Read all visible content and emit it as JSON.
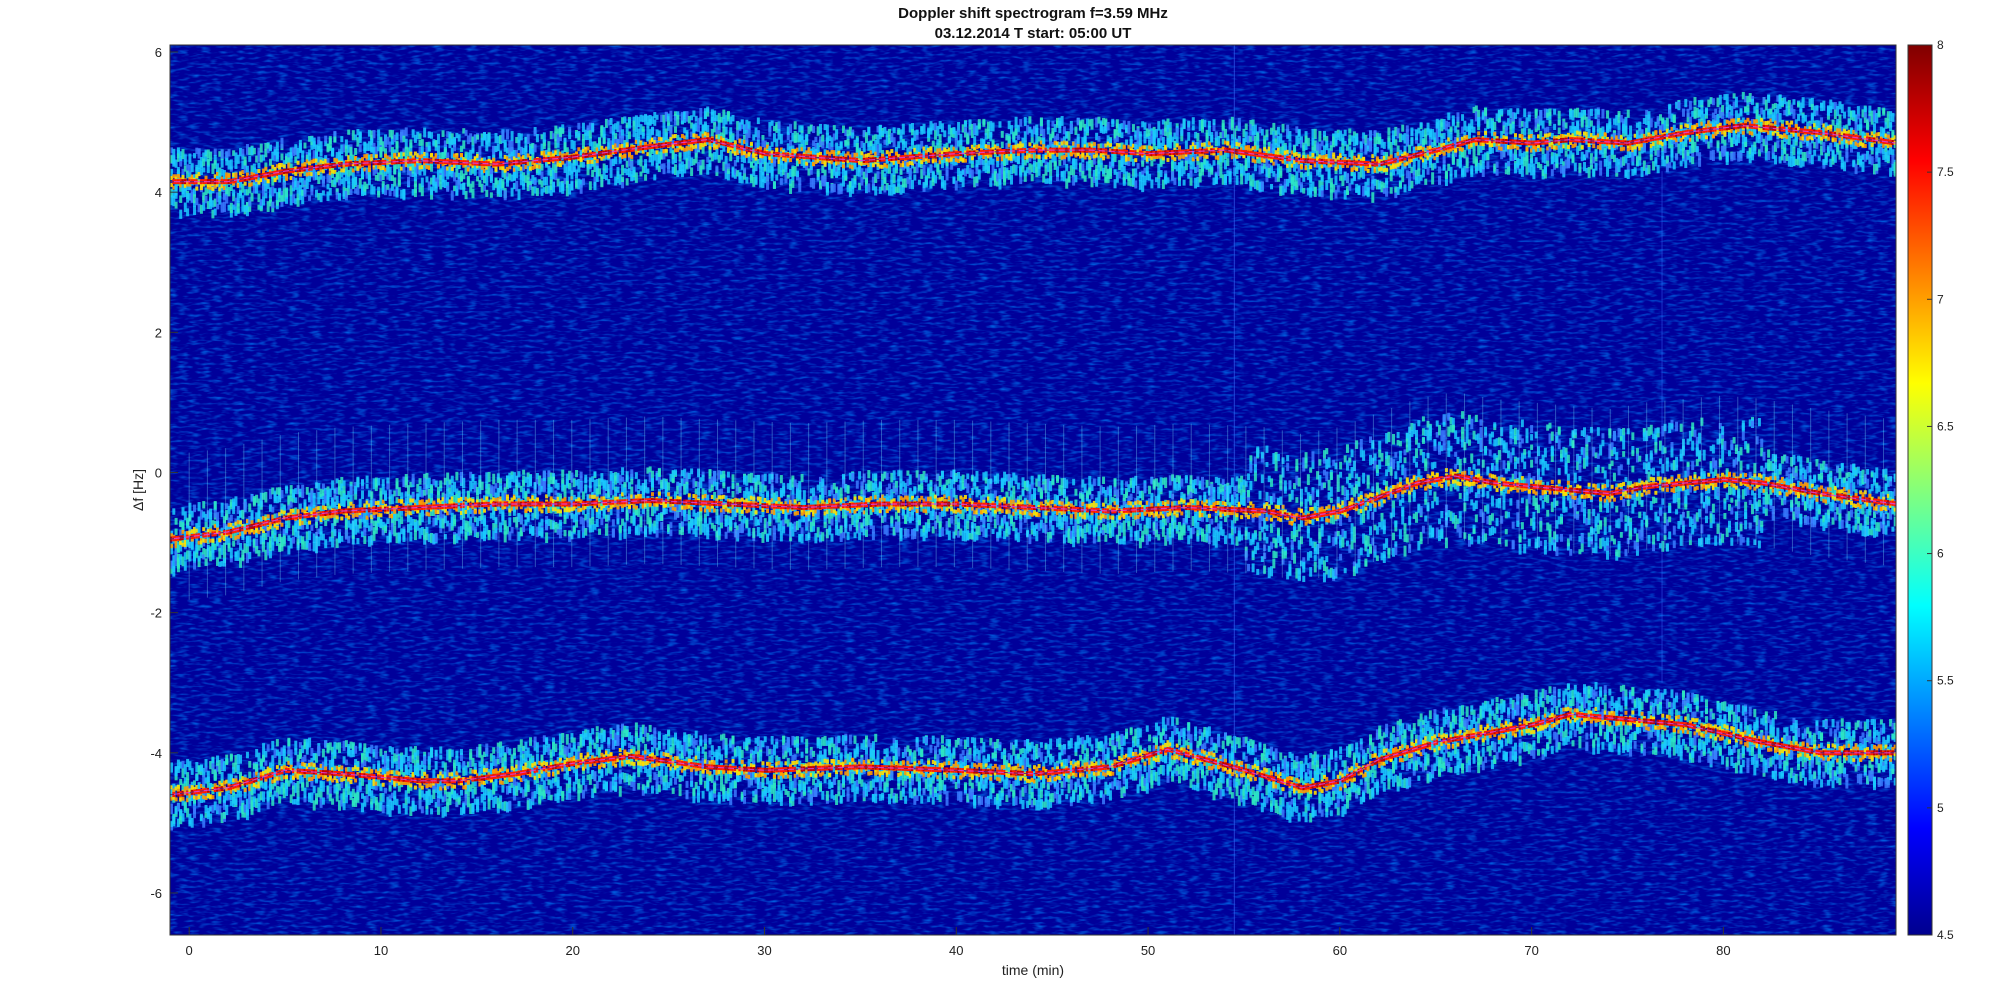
{
  "chart_data": {
    "type": "heatmap",
    "title": "Doppler shift spectrogram f=3.59 MHz",
    "subtitle": "03.12.2014   T start: 05:00 UT",
    "xlabel": "time (min)",
    "ylabel": "Δf [Hz]",
    "xlim": [
      -1,
      89
    ],
    "ylim": [
      -6.6,
      6.1
    ],
    "xticks": [
      0,
      10,
      20,
      30,
      40,
      50,
      60,
      70,
      80
    ],
    "yticks": [
      -6,
      -4,
      -2,
      0,
      2,
      4,
      6
    ],
    "colorbar": {
      "colormap": "jet",
      "range": [
        4.5,
        8
      ],
      "ticks": [
        4.5,
        5,
        5.5,
        6,
        6.5,
        7,
        7.5,
        8
      ]
    },
    "grid": false,
    "series": [
      {
        "x": [
          -1,
          2,
          5,
          8,
          12,
          16,
          20,
          24,
          27,
          30,
          35,
          40,
          44,
          47,
          50,
          54,
          58,
          62,
          65,
          67,
          70,
          72,
          75,
          78,
          81,
          85,
          89
        ],
        "y": [
          4.15,
          4.15,
          4.3,
          4.4,
          4.45,
          4.4,
          4.5,
          4.65,
          4.75,
          4.55,
          4.45,
          4.55,
          4.6,
          4.6,
          4.55,
          4.6,
          4.45,
          4.4,
          4.6,
          4.75,
          4.7,
          4.75,
          4.7,
          4.85,
          4.95,
          4.85,
          4.7
        ]
      },
      {
        "x": [
          -1,
          2,
          5,
          8,
          12,
          16,
          20,
          24,
          28,
          32,
          36,
          40,
          44,
          48,
          52,
          56,
          58,
          60,
          62,
          64,
          66,
          68,
          70,
          72,
          74,
          76,
          78,
          80,
          82,
          85,
          89
        ],
        "y": [
          -0.95,
          -0.85,
          -0.65,
          -0.55,
          -0.5,
          -0.45,
          -0.45,
          -0.4,
          -0.45,
          -0.5,
          -0.45,
          -0.45,
          -0.5,
          -0.55,
          -0.5,
          -0.55,
          -0.65,
          -0.55,
          -0.35,
          -0.15,
          -0.05,
          -0.15,
          -0.2,
          -0.25,
          -0.3,
          -0.2,
          -0.15,
          -0.1,
          -0.15,
          -0.3,
          -0.45
        ]
      },
      {
        "x": [
          -1,
          2,
          5,
          8,
          12,
          14,
          17,
          20,
          23,
          27,
          30,
          35,
          40,
          44,
          48,
          51,
          55,
          58,
          60,
          62,
          65,
          68,
          70,
          72,
          74,
          78,
          82,
          85,
          89
        ],
        "y": [
          -4.6,
          -4.5,
          -4.25,
          -4.3,
          -4.4,
          -4.4,
          -4.3,
          -4.15,
          -4.05,
          -4.2,
          -4.25,
          -4.2,
          -4.25,
          -4.3,
          -4.2,
          -3.95,
          -4.25,
          -4.5,
          -4.4,
          -4.1,
          -3.85,
          -3.7,
          -3.6,
          -3.45,
          -3.5,
          -3.6,
          -3.85,
          -4.0,
          -4.0
        ]
      }
    ]
  }
}
